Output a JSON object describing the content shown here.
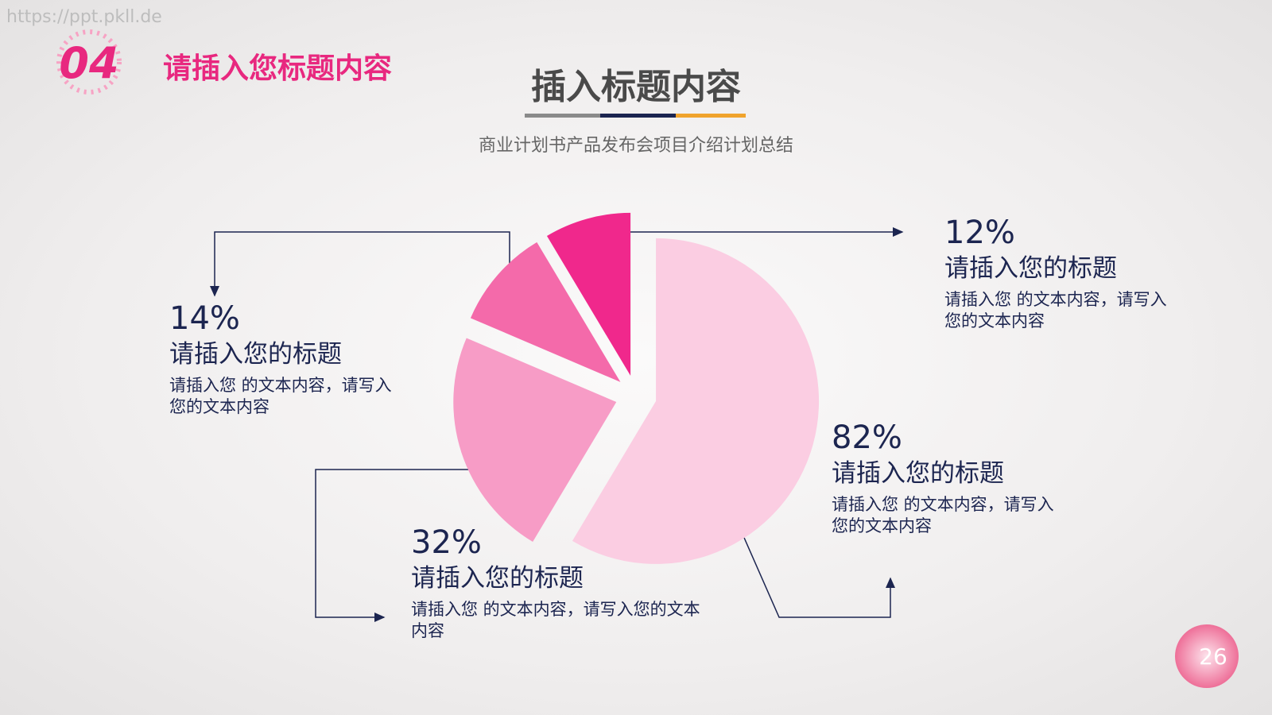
{
  "watermark": "https://ppt.pkll.de",
  "header": {
    "number": "04",
    "title": "请插入您标题内容"
  },
  "page_number": "26",
  "chart_data": {
    "type": "pie",
    "title": "插入标题内容",
    "subtitle": "商业计划书产品发布会项目介绍计划总结",
    "categories": [
      "请插入您的标题",
      "请插入您的标题",
      "请插入您的标题",
      "请插入您的标题"
    ],
    "values": [
      12,
      14,
      32,
      82
    ],
    "value_labels": [
      "12%",
      "14%",
      "32%",
      "82%"
    ],
    "descriptions": [
      "请插入您 的文本内容，请写入您的文本内容",
      "请插入您 的文本内容，请写入您的文本内容",
      "请插入您 的文本内容，请写入您的文本内容",
      "请插入您 的文本内容，请写入您的文本内容"
    ],
    "colors": [
      "#f0288c",
      "#f46aaa",
      "#f79cc6",
      "#fbcde2"
    ]
  }
}
